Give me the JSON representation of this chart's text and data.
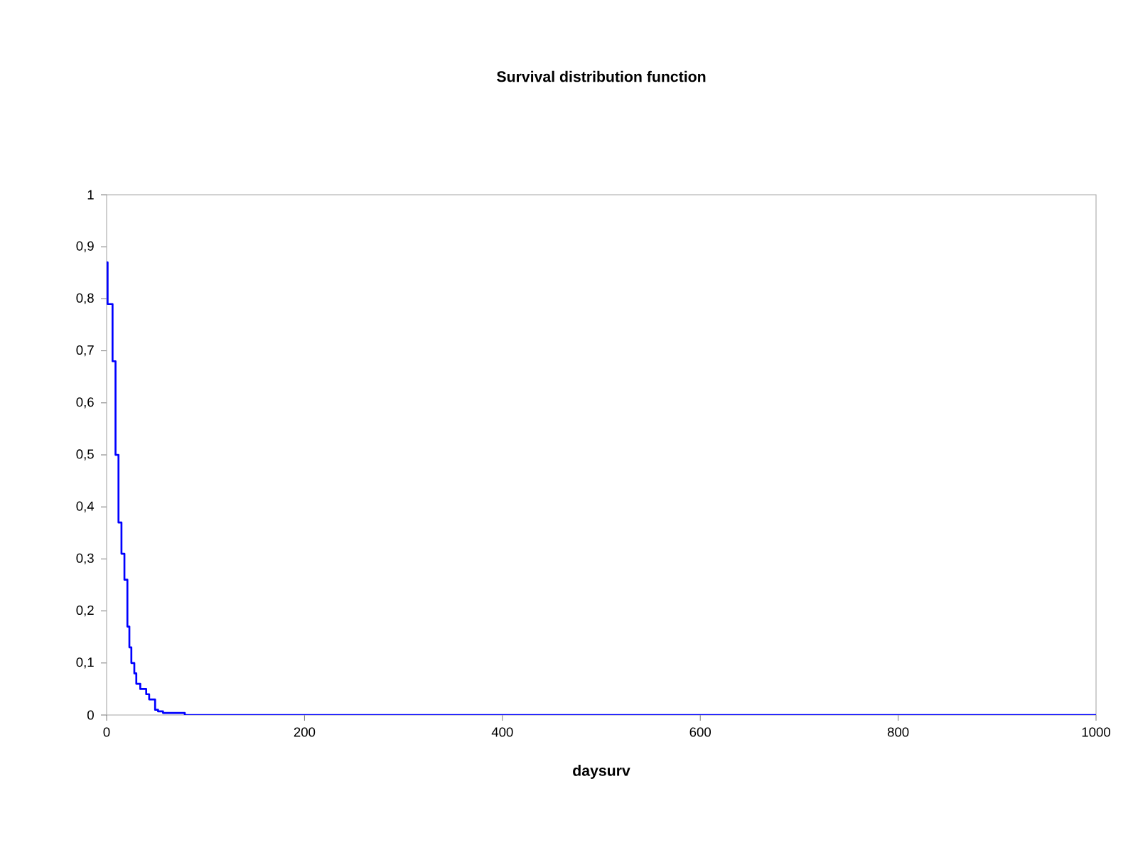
{
  "chart_data": {
    "type": "step",
    "title": "Survival distribution function",
    "xlabel": "daysurv",
    "x": [
      0,
      1,
      6,
      9,
      12,
      15,
      18,
      21,
      23,
      25,
      28,
      30,
      34,
      40,
      43,
      49,
      52,
      57,
      79,
      1000
    ],
    "values": [
      0.87,
      0.79,
      0.68,
      0.5,
      0.37,
      0.31,
      0.26,
      0.17,
      0.13,
      0.1,
      0.08,
      0.06,
      0.05,
      0.04,
      0.03,
      0.01,
      0.007,
      0.004,
      0,
      0
    ],
    "color": "#0000ff",
    "xlim": [
      0,
      1000
    ],
    "ylim": [
      0,
      1
    ],
    "xticks": [
      0,
      200,
      400,
      600,
      800,
      1000
    ],
    "yticks": [
      0,
      {
        "value": 0.1,
        "label": "0,1"
      },
      {
        "value": 0.2,
        "label": "0,2"
      },
      {
        "value": 0.3,
        "label": "0,3"
      },
      {
        "value": 0.4,
        "label": "0,4"
      },
      {
        "value": 0.5,
        "label": "0,5"
      },
      {
        "value": 0.6,
        "label": "0,6"
      },
      {
        "value": 0.7,
        "label": "0,7"
      },
      {
        "value": 0.8,
        "label": "0,8"
      },
      {
        "value": 0.9,
        "label": "0,9"
      },
      1
    ]
  }
}
